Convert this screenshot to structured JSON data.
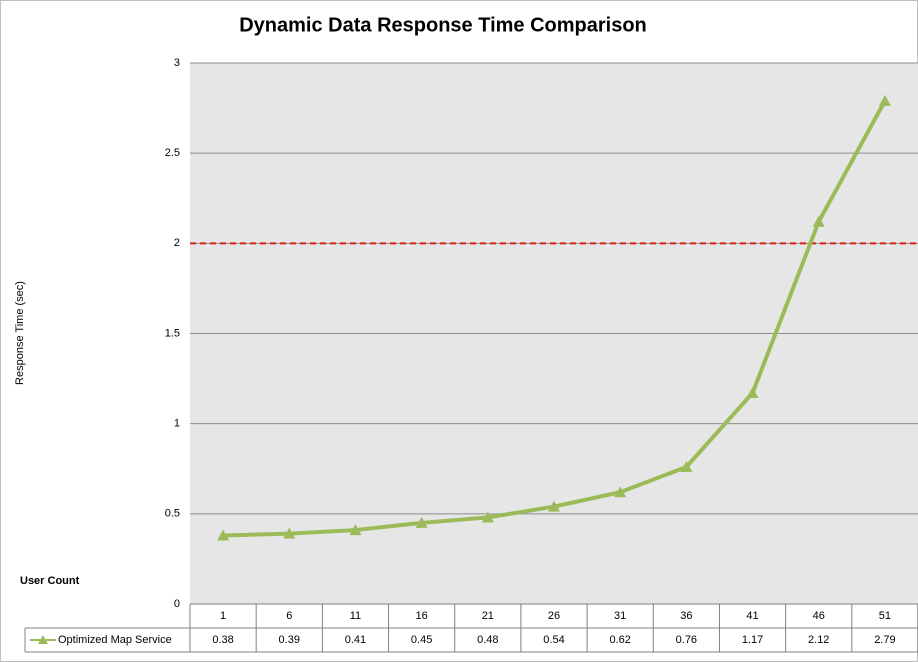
{
  "chart_data": {
    "type": "line",
    "title": "Dynamic Data Response Time Comparison",
    "x_label": "User Count",
    "y_label": "Response Time  (sec)",
    "categories": [
      "1",
      "6",
      "11",
      "16",
      "21",
      "26",
      "31",
      "36",
      "41",
      "46",
      "51"
    ],
    "series": [
      {
        "name": "Optimized Map Service",
        "color": "#9bbb59",
        "values": [
          0.38,
          0.39,
          0.41,
          0.45,
          0.48,
          0.54,
          0.62,
          0.76,
          1.17,
          2.12,
          2.79
        ]
      }
    ],
    "ylim": [
      0,
      3
    ],
    "yticks": [
      0,
      0.5,
      1,
      1.5,
      2,
      2.5,
      3
    ],
    "grid": true,
    "threshold": 2,
    "threshold_color": "#e0201b"
  }
}
